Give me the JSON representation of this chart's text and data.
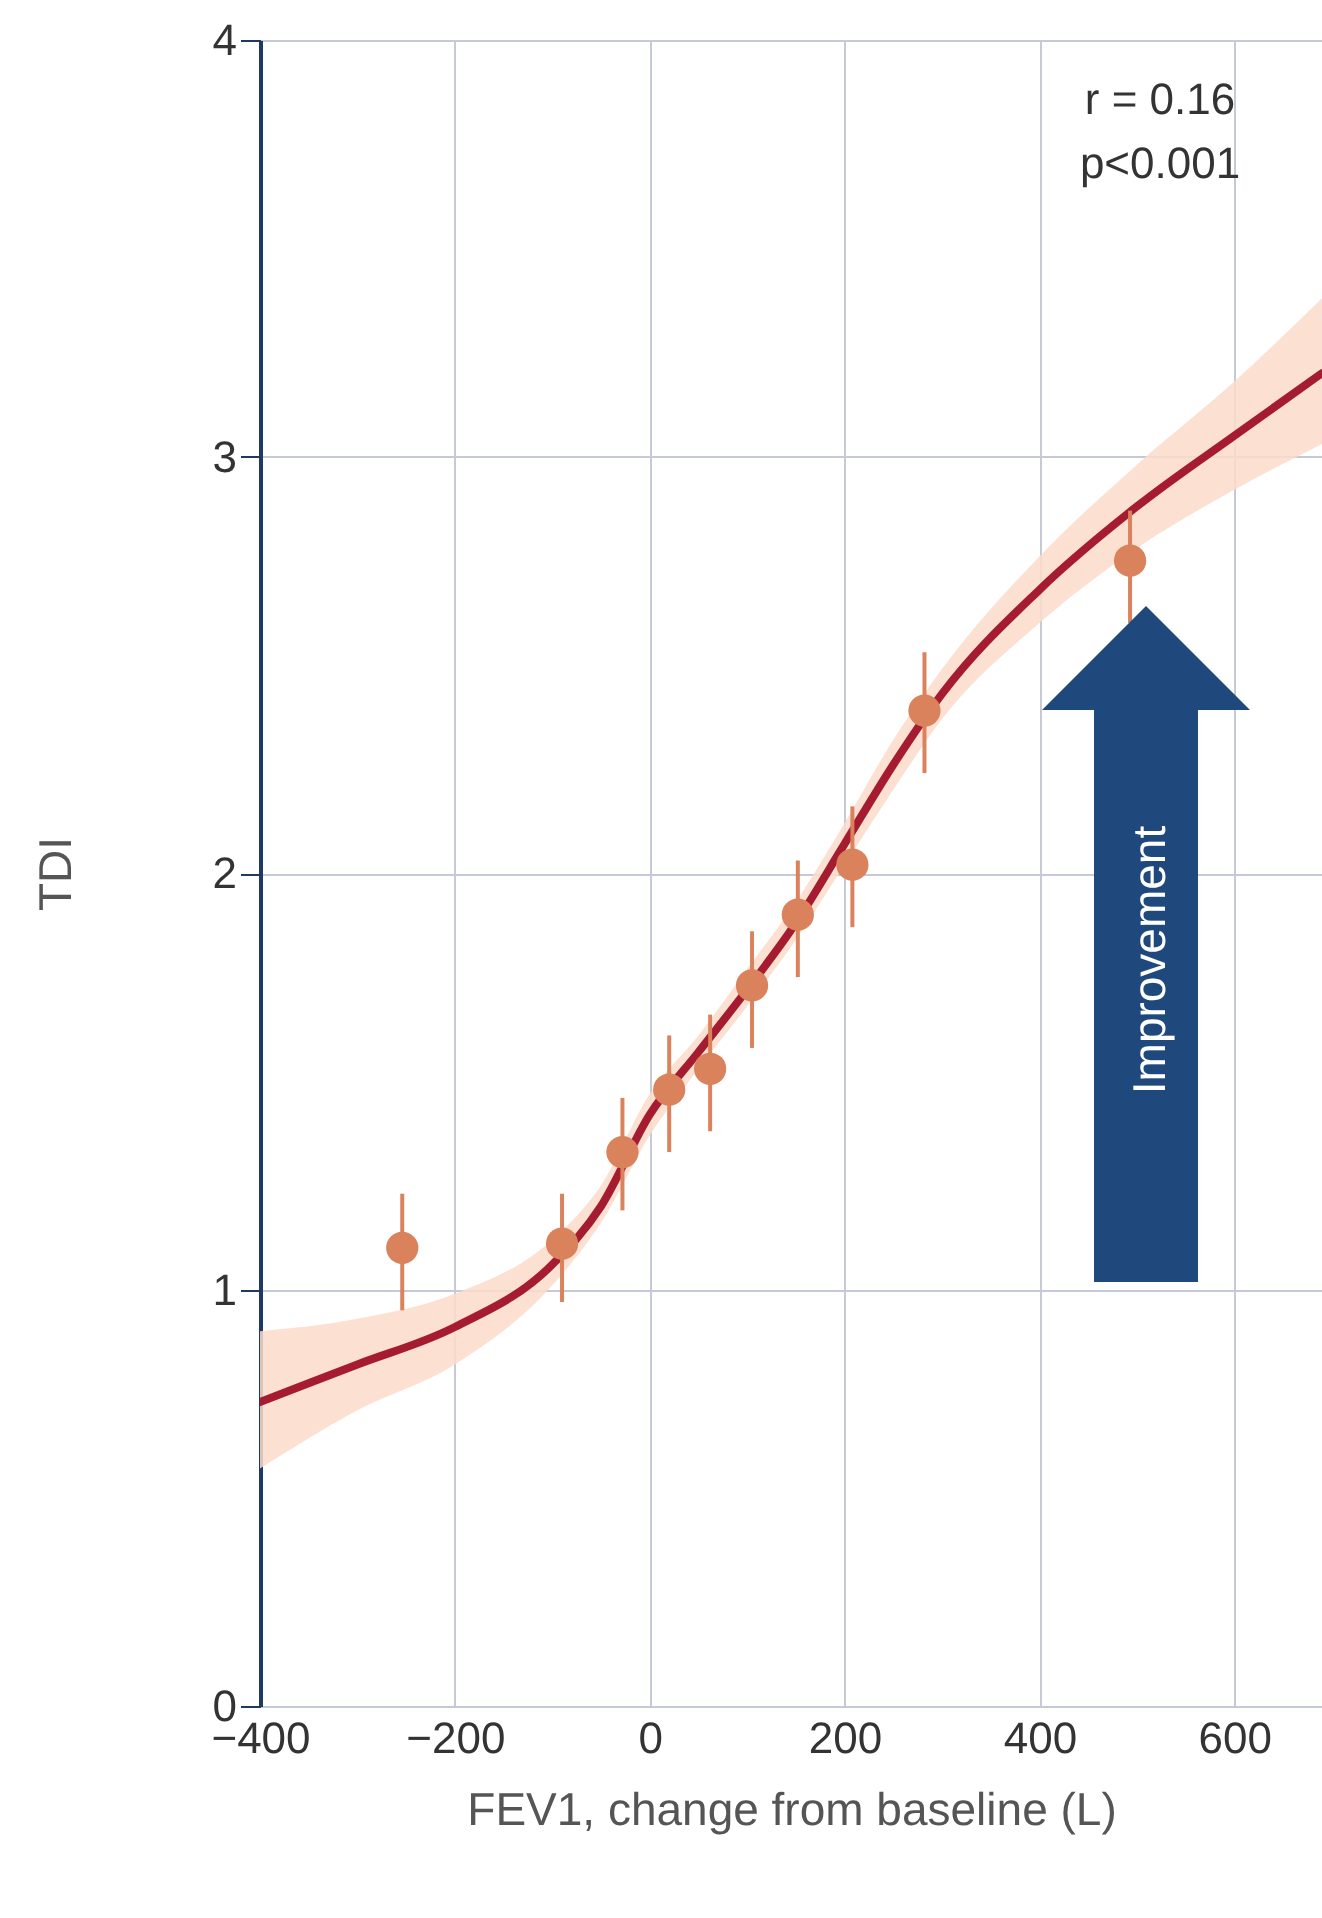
{
  "chart_data": {
    "type": "scatter",
    "xlabel": "FEV1, change from baseline (L)",
    "ylabel": "TDI",
    "annotations": [
      "r = 0.16",
      "p<0.001",
      "Improvement"
    ],
    "xlim": [
      -400,
      690
    ],
    "ylim": [
      0,
      4
    ],
    "xticks": [
      {
        "value": -400,
        "label": "−400"
      },
      {
        "value": -200,
        "label": "−200"
      },
      0,
      200,
      400,
      600
    ],
    "yticks": [
      0,
      1,
      2,
      3,
      4
    ],
    "grid": true,
    "series": [
      {
        "type": "line",
        "color": "#a51c30",
        "x": [
          -400,
          -300,
          -200,
          -100,
          -50,
          0,
          50,
          100,
          150,
          200,
          250,
          300,
          400,
          500,
          600,
          690
        ],
        "values": [
          0.73,
          0.82,
          0.91,
          1.06,
          1.2,
          1.42,
          1.57,
          1.72,
          1.88,
          2.07,
          2.26,
          2.43,
          2.68,
          2.88,
          3.05,
          3.2
        ],
        "lower": [
          0.57,
          0.71,
          0.82,
          1.01,
          1.16,
          1.37,
          1.53,
          1.68,
          1.84,
          2.02,
          2.2,
          2.37,
          2.6,
          2.78,
          2.92,
          3.03
        ],
        "upper": [
          0.9,
          0.93,
          0.99,
          1.12,
          1.25,
          1.47,
          1.61,
          1.77,
          1.93,
          2.12,
          2.32,
          2.49,
          2.76,
          2.98,
          3.18,
          3.38
        ]
      },
      {
        "marker": "circle",
        "color": "#d9825c",
        "x": [
          -254,
          -90,
          -28,
          20,
          62,
          105,
          152,
          208,
          282,
          493
        ],
        "values": [
          1.1,
          1.11,
          1.33,
          1.48,
          1.53,
          1.73,
          1.9,
          2.02,
          2.39,
          2.75
        ],
        "errors": [
          [
            0.95,
            1.23
          ],
          [
            0.97,
            1.23
          ],
          [
            1.19,
            1.46
          ],
          [
            1.33,
            1.61
          ],
          [
            1.38,
            1.66
          ],
          [
            1.58,
            1.86
          ],
          [
            1.75,
            2.03
          ],
          [
            1.87,
            2.16
          ],
          [
            2.24,
            2.53
          ],
          [
            2.6,
            2.87
          ]
        ]
      }
    ]
  }
}
